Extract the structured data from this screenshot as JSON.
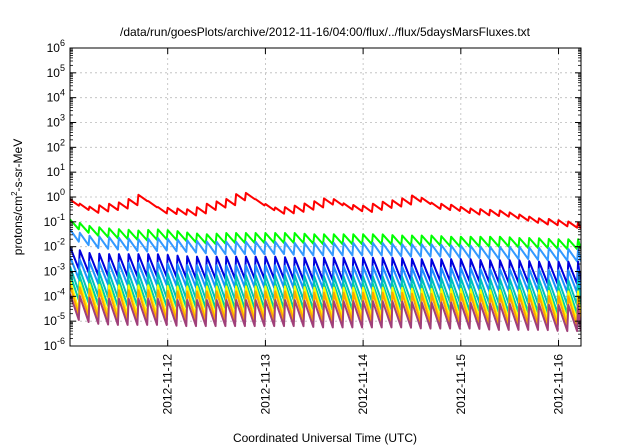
{
  "chart_data": {
    "type": "line",
    "title": "/data/run/goesPlots/archive/2012-11-16/04:00/flux/../flux/5daysMarsFluxes.txt",
    "xlabel": "Coordinated Universal Time (UTC)",
    "ylabel": "protons/cm²-s-sr-MeV",
    "ylabel_parts": {
      "base": "protons/cm",
      "sup": "2",
      "rest": "-s-sr-MeV"
    },
    "xlim": [
      0,
      5.23
    ],
    "x_unit": "days since 2012-11-11 00:00 UTC",
    "y_log": true,
    "ylim_exp": [
      -6,
      6
    ],
    "y_ticks": [
      {
        "base": "10",
        "exp": "-6",
        "value": -6
      },
      {
        "base": "10",
        "exp": "-5",
        "value": -5
      },
      {
        "base": "10",
        "exp": "-4",
        "value": -4
      },
      {
        "base": "10",
        "exp": "-3",
        "value": -3
      },
      {
        "base": "10",
        "exp": "-2",
        "value": -2
      },
      {
        "base": "10",
        "exp": "-1",
        "value": -1
      },
      {
        "base": "10",
        "exp": "0",
        "value": 0
      },
      {
        "base": "10",
        "exp": "1",
        "value": 1
      },
      {
        "base": "10",
        "exp": "2",
        "value": 2
      },
      {
        "base": "10",
        "exp": "3",
        "value": 3
      },
      {
        "base": "10",
        "exp": "4",
        "value": 4
      },
      {
        "base": "10",
        "exp": "5",
        "value": 5
      },
      {
        "base": "10",
        "exp": "6",
        "value": 6
      }
    ],
    "x_ticks": [
      {
        "label": "2012-11-12",
        "value": 1
      },
      {
        "label": "2012-11-13",
        "value": 2
      },
      {
        "label": "2012-11-14",
        "value": 3
      },
      {
        "label": "2012-11-15",
        "value": 4
      },
      {
        "label": "2012-11-16",
        "value": 5
      }
    ],
    "grid": true,
    "legend": "none",
    "sawtooth_period_days": 0.1,
    "series": [
      {
        "color": "#ff0000",
        "log_top": [
          -0.1,
          -0.4,
          -0.3,
          -0.2,
          0.1,
          -0.4,
          -0.45,
          -0.5,
          -0.25,
          -0.1,
          0.25,
          -0.2,
          -0.45,
          -0.35,
          -0.2,
          0.0,
          -0.3,
          -0.35,
          -0.2,
          -0.1,
          0.1,
          -0.25,
          -0.3,
          -0.45,
          -0.5,
          -0.55,
          -0.7,
          -0.85,
          -0.9,
          -1.0,
          -1.05
        ],
        "drop": 0.25
      },
      {
        "color": "#00ff00",
        "log_top": [
          -0.9,
          -1.15,
          -1.25,
          -1.3,
          -1.35,
          -1.3,
          -1.35,
          -1.45,
          -1.5,
          -1.45,
          -1.45,
          -1.45,
          -1.45,
          -1.45,
          -1.5,
          -1.5,
          -1.5,
          -1.5,
          -1.5,
          -1.55,
          -1.55,
          -1.55,
          -1.6,
          -1.6,
          -1.6,
          -1.6,
          -1.65,
          -1.65,
          -1.7,
          -1.7,
          -1.7
        ],
        "drop": 0.4
      },
      {
        "color": "#3399ff",
        "log_top": [
          -1.3,
          -1.55,
          -1.6,
          -1.65,
          -1.7,
          -1.65,
          -1.7,
          -1.75,
          -1.8,
          -1.8,
          -1.8,
          -1.8,
          -1.8,
          -1.85,
          -1.85,
          -1.85,
          -1.85,
          -1.85,
          -1.85,
          -1.9,
          -1.9,
          -1.9,
          -1.95,
          -1.95,
          -2.0,
          -2.0,
          -2.0,
          -2.05,
          -2.05,
          -2.1,
          -2.1
        ],
        "drop": 0.5
      },
      {
        "color": "#0000dd",
        "log_top": [
          -2.0,
          -2.25,
          -2.3,
          -2.3,
          -2.3,
          -2.3,
          -2.35,
          -2.4,
          -2.4,
          -2.4,
          -2.4,
          -2.4,
          -2.4,
          -2.45,
          -2.45,
          -2.45,
          -2.45,
          -2.45,
          -2.45,
          -2.45,
          -2.5,
          -2.5,
          -2.5,
          -2.5,
          -2.55,
          -2.55,
          -2.55,
          -2.6,
          -2.6,
          -2.6,
          -2.6
        ],
        "drop": 0.9
      },
      {
        "color": "#1e90ff",
        "log_top": [
          -2.4,
          -2.6,
          -2.65,
          -2.65,
          -2.65,
          -2.65,
          -2.7,
          -2.75,
          -2.75,
          -2.75,
          -2.75,
          -2.75,
          -2.75,
          -2.8,
          -2.8,
          -2.8,
          -2.8,
          -2.8,
          -2.8,
          -2.8,
          -2.85,
          -2.85,
          -2.85,
          -2.85,
          -2.9,
          -2.9,
          -2.9,
          -2.9,
          -2.95,
          -2.95,
          -2.95
        ],
        "drop": 0.9
      },
      {
        "color": "#00bfbf",
        "log_top": [
          -2.8,
          -3.0,
          -3.05,
          -3.05,
          -3.05,
          -3.05,
          -3.1,
          -3.1,
          -3.15,
          -3.15,
          -3.15,
          -3.15,
          -3.15,
          -3.15,
          -3.2,
          -3.2,
          -3.2,
          -3.2,
          -3.2,
          -3.2,
          -3.25,
          -3.25,
          -3.25,
          -3.25,
          -3.3,
          -3.3,
          -3.3,
          -3.3,
          -3.35,
          -3.35,
          -3.35
        ],
        "drop": 1.0
      },
      {
        "color": "#00d0a0",
        "log_top": [
          -3.1,
          -3.3,
          -3.35,
          -3.35,
          -3.35,
          -3.35,
          -3.4,
          -3.4,
          -3.45,
          -3.45,
          -3.45,
          -3.45,
          -3.45,
          -3.45,
          -3.5,
          -3.5,
          -3.5,
          -3.5,
          -3.5,
          -3.5,
          -3.55,
          -3.55,
          -3.55,
          -3.55,
          -3.6,
          -3.6,
          -3.6,
          -3.6,
          -3.65,
          -3.65,
          -3.65
        ],
        "drop": 1.05
      },
      {
        "color": "#ffff00",
        "log_top": [
          -3.35,
          -3.5,
          -3.55,
          -3.55,
          -3.55,
          -3.55,
          -3.6,
          -3.6,
          -3.6,
          -3.6,
          -3.6,
          -3.6,
          -3.6,
          -3.6,
          -3.65,
          -3.65,
          -3.65,
          -3.65,
          -3.65,
          -3.65,
          -3.7,
          -3.7,
          -3.7,
          -3.7,
          -3.75,
          -3.75,
          -3.75,
          -3.75,
          -3.8,
          -3.8,
          -3.8
        ],
        "drop": 1.2
      },
      {
        "color": "#ffa500",
        "log_top": [
          -3.55,
          -3.7,
          -3.75,
          -3.75,
          -3.75,
          -3.75,
          -3.8,
          -3.8,
          -3.8,
          -3.8,
          -3.8,
          -3.8,
          -3.8,
          -3.8,
          -3.85,
          -3.85,
          -3.85,
          -3.85,
          -3.85,
          -3.85,
          -3.9,
          -3.9,
          -3.9,
          -3.9,
          -3.95,
          -3.95,
          -3.95,
          -3.95,
          -4.0,
          -4.0,
          -4.0
        ],
        "drop": 1.2
      },
      {
        "color": "#a0407a",
        "log_top": [
          -3.9,
          -4.05,
          -4.1,
          -4.1,
          -4.1,
          -4.1,
          -4.15,
          -4.15,
          -4.15,
          -4.15,
          -4.15,
          -4.15,
          -4.15,
          -4.15,
          -4.2,
          -4.2,
          -4.2,
          -4.2,
          -4.2,
          -4.2,
          -4.25,
          -4.25,
          -4.25,
          -4.25,
          -4.3,
          -4.3,
          -4.3,
          -4.3,
          -4.35,
          -4.35,
          -4.35
        ],
        "drop": 1.05
      }
    ]
  }
}
